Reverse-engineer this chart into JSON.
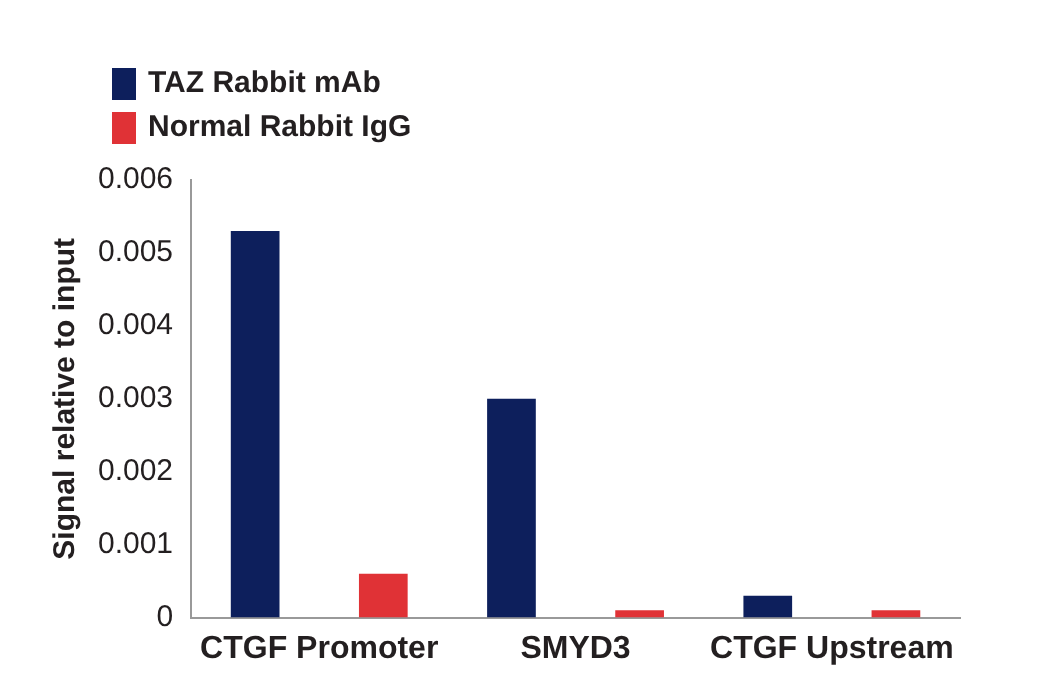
{
  "chart_data": {
    "type": "bar",
    "ylabel": "Signal relative to input",
    "categories": [
      "CTGF Promoter",
      "SMYD3",
      "CTGF Upstream"
    ],
    "series": [
      {
        "name": "TAZ Rabbit mAb",
        "color": "#0d1f5c",
        "values": [
          0.0053,
          0.003,
          0.0003
        ]
      },
      {
        "name": "Normal Rabbit IgG",
        "color": "#e03236",
        "values": [
          0.0006,
          0.0001,
          0.0001
        ]
      }
    ],
    "ylim": [
      0,
      0.006
    ],
    "yticks": [
      0,
      0.001,
      0.002,
      0.003,
      0.004,
      0.005,
      0.006
    ],
    "grid": false,
    "legend": "top left"
  }
}
